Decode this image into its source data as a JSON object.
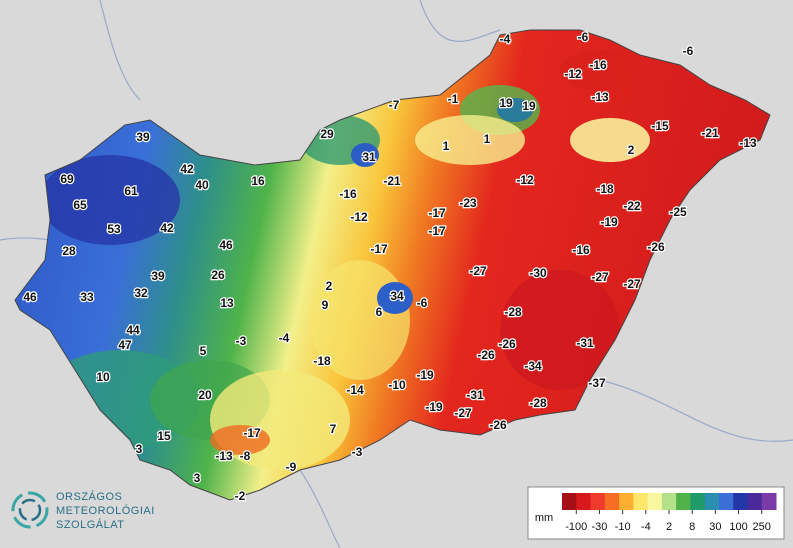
{
  "map": {
    "stations": [
      -4,
      -6,
      -6,
      -12,
      -16,
      -13,
      -7,
      -1,
      19,
      19,
      -15,
      -21,
      -13,
      29,
      31,
      1,
      1,
      2,
      39,
      42,
      40,
      16,
      69,
      61,
      -16,
      -21,
      -12,
      -18,
      65,
      -23,
      -22,
      -25,
      -12,
      -17,
      -19,
      53,
      42,
      -17,
      46,
      -16,
      -26,
      28,
      -17,
      39,
      26,
      -27,
      -30,
      -27,
      -27,
      2,
      32,
      46,
      33,
      34,
      -6,
      13,
      9,
      6,
      -28,
      44,
      47,
      -3,
      -4,
      -31,
      -26,
      5,
      -26,
      -18,
      -34,
      10,
      -19,
      -10,
      -14,
      -37,
      20,
      -31,
      -28,
      -19,
      -27,
      -17,
      7,
      -26,
      15,
      3,
      -13,
      -8,
      -3,
      -9,
      3,
      -2
    ]
  },
  "legend": {
    "unit": "mm",
    "ticks": [
      -100,
      -30,
      -10,
      -4,
      2,
      8,
      30,
      100,
      250
    ],
    "colors": [
      "#a50f15",
      "#d7191c",
      "#ef3b2c",
      "#f46d22",
      "#fdae2e",
      "#fee66a",
      "#f7f7a0",
      "#b5e08a",
      "#4fb34a",
      "#1f9a6a",
      "#2a8fb0",
      "#3a6fd8",
      "#2537a8",
      "#4a2a9a",
      "#7a3aa8"
    ]
  },
  "logo": {
    "lines": [
      "ORSZÁGOS",
      "METEOROLÓGIAI",
      "SZOLGÁLAT"
    ]
  }
}
